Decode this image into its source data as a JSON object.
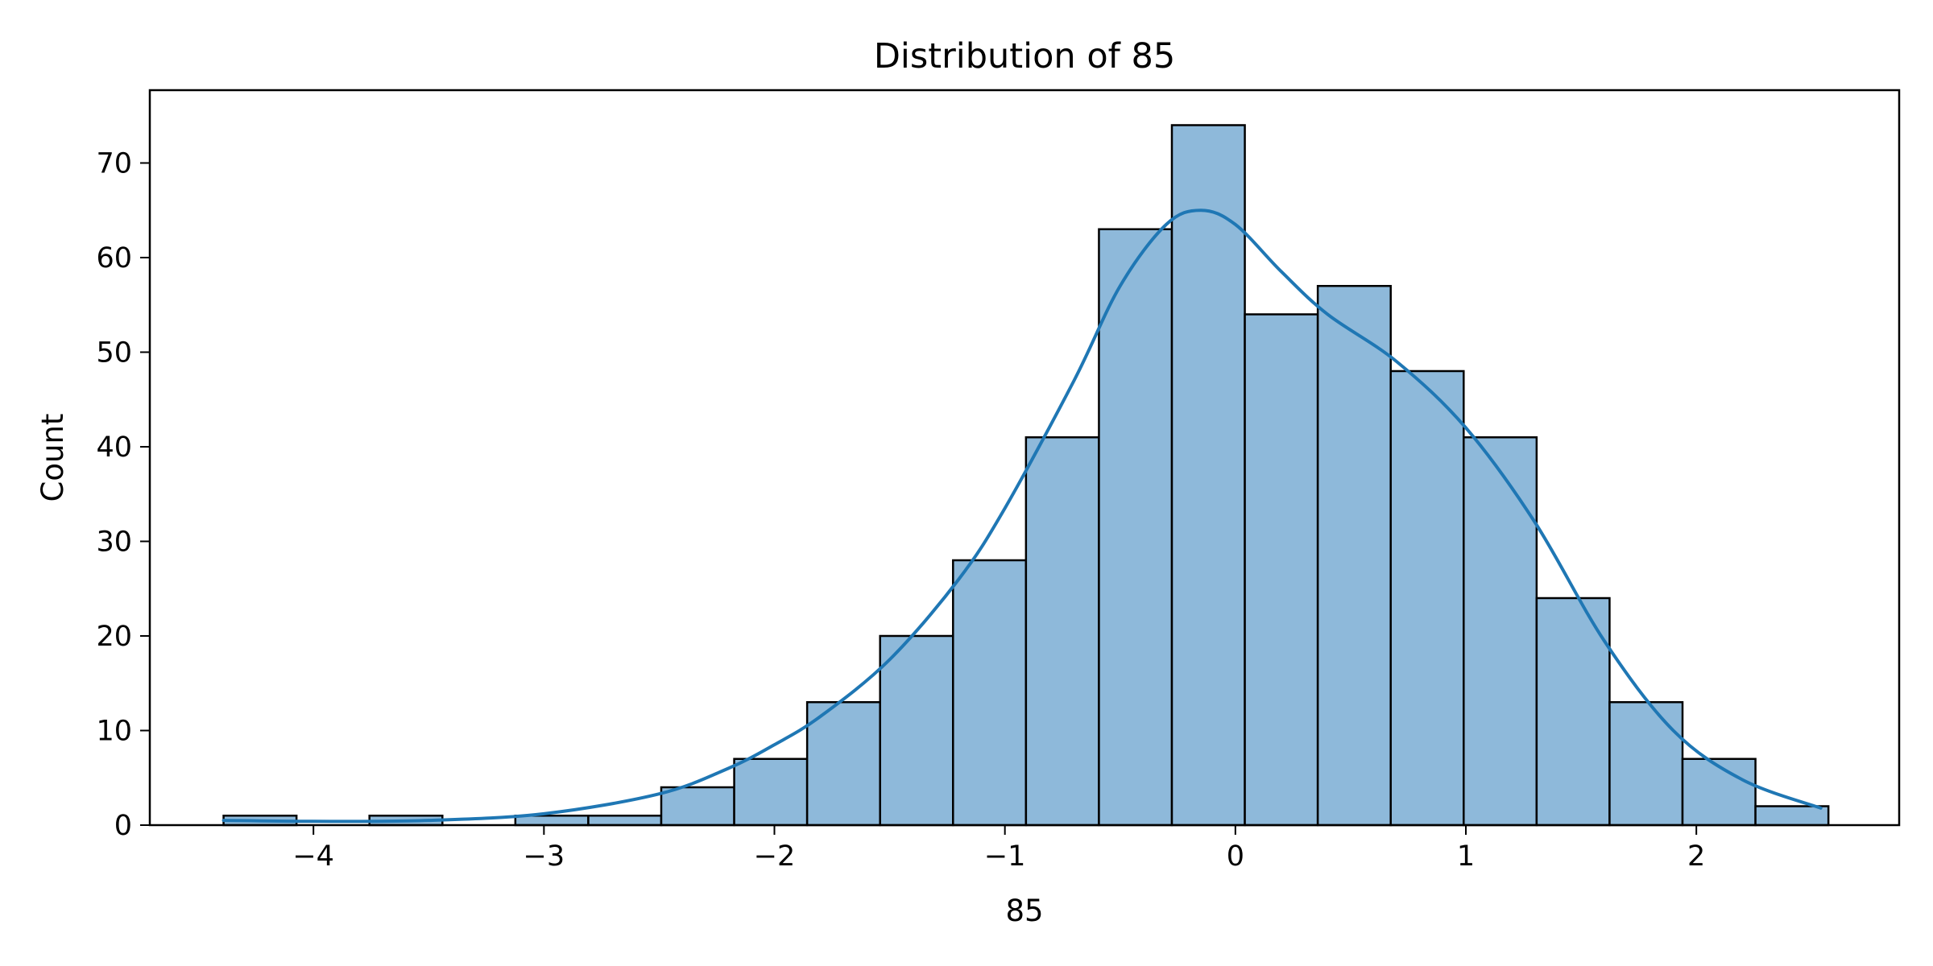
{
  "chart_data": {
    "type": "bar",
    "title": "Distribution of 85",
    "xlabel": "85",
    "ylabel": "Count",
    "xlim": [
      -4.71,
      2.88
    ],
    "ylim": [
      0,
      77.7
    ],
    "xticks": [
      -4,
      -3,
      -2,
      -1,
      0,
      1,
      2
    ],
    "yticks": [
      0,
      10,
      20,
      30,
      40,
      50,
      60,
      70
    ],
    "xtick_labels": [
      "−4",
      "−3",
      "−2",
      "−1",
      "0",
      "1",
      "2"
    ],
    "ytick_labels": [
      "0",
      "10",
      "20",
      "30",
      "40",
      "50",
      "60",
      "70"
    ],
    "bins": {
      "start": -4.39,
      "width": 0.3165,
      "counts": [
        1,
        0,
        1,
        0,
        1,
        1,
        4,
        7,
        13,
        20,
        28,
        41,
        63,
        74,
        54,
        57,
        48,
        41,
        24,
        13,
        7,
        2
      ]
    },
    "kde": {
      "x": [
        -4.39,
        -4.0,
        -3.5,
        -3.0,
        -2.5,
        -2.2,
        -2.0,
        -1.8,
        -1.5,
        -1.2,
        -1.0,
        -0.7,
        -0.5,
        -0.3,
        -0.15,
        0.0,
        0.2,
        0.4,
        0.7,
        1.0,
        1.3,
        1.6,
        1.9,
        2.2,
        2.54
      ],
      "y": [
        0.5,
        0.4,
        0.5,
        1.2,
        3.3,
        6.0,
        8.5,
        11.5,
        17.5,
        26.0,
        33.5,
        47.0,
        57.0,
        63.5,
        65.0,
        63.5,
        58.5,
        54.0,
        49.0,
        42.0,
        32.0,
        19.5,
        10.0,
        4.8,
        1.8
      ]
    },
    "grid": false,
    "legend": "none",
    "colors": {
      "bar_fill": "#8eb9da",
      "bar_edge": "#000000",
      "kde_line": "#1f77b4",
      "axes": "#000000"
    }
  }
}
